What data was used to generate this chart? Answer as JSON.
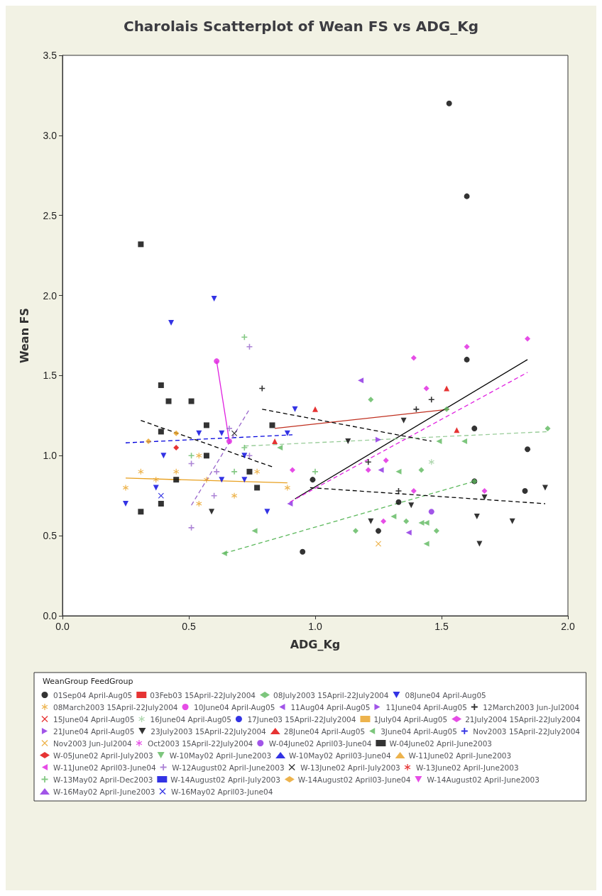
{
  "chart_data": {
    "type": "scatter",
    "title": "Charolais Scatterplot of Wean FS vs ADG_Kg",
    "xlabel": "ADG_Kg",
    "ylabel": "Wean FS",
    "legend_title": "WeanGroup FeedGroup",
    "legend": "bottom",
    "grid": false,
    "xlim": [
      0,
      2
    ],
    "xticks": [
      {
        "value": 0,
        "label": "0.0"
      },
      {
        "value": 0.5,
        "label": "0.5"
      },
      {
        "value": 1,
        "label": "1.0"
      },
      {
        "value": 1.5,
        "label": "1.5"
      },
      {
        "value": 2,
        "label": "2.0"
      }
    ],
    "ylim": [
      0,
      3.5
    ],
    "yticks": [
      {
        "value": 0,
        "label": "0.0"
      },
      {
        "value": 0.5,
        "label": "0.5"
      },
      {
        "value": 1,
        "label": "1.0"
      },
      {
        "value": 1.5,
        "label": "1.5"
      },
      {
        "value": 2,
        "label": "2.0"
      },
      {
        "value": 2.5,
        "label": "2.5"
      },
      {
        "value": 3,
        "label": "3.0"
      },
      {
        "value": 3.5,
        "label": "3.5"
      }
    ],
    "series": [
      {
        "name": "01Sep04 April-Aug05",
        "color": "#000000",
        "marker": "circle",
        "x": [
          0.95,
          0.99,
          1.25,
          1.33,
          1.6,
          1.6,
          1.53,
          1.63,
          1.63,
          1.83,
          1.84
        ],
        "values": [
          0.4,
          0.85,
          0.53,
          0.71,
          1.6,
          2.62,
          3.2,
          0.84,
          1.17,
          0.78,
          1.04
        ]
      },
      {
        "name": "03Feb03 15April-22July2004",
        "color": "#e00000",
        "marker": "square"
      },
      {
        "name": "08July2003 15April-22July2004",
        "color": "#5cb85c",
        "marker": "diamond",
        "x": [
          1.16,
          1.22,
          1.36,
          1.42,
          1.48,
          1.52,
          1.63,
          1.92
        ],
        "values": [
          0.53,
          1.35,
          0.59,
          0.91,
          0.53,
          1.29,
          0.84,
          1.17
        ]
      },
      {
        "name": "08June04 April-Aug05",
        "color": "#0000dd",
        "marker": "triangle-down",
        "x": [
          0.25,
          0.37,
          0.4,
          0.43,
          0.54,
          0.6,
          0.63,
          0.63,
          0.72,
          0.72,
          0.81,
          0.89,
          0.92
        ],
        "values": [
          0.7,
          0.8,
          1.0,
          1.83,
          1.14,
          1.98,
          0.85,
          1.14,
          0.85,
          1.0,
          0.65,
          1.14,
          1.29
        ]
      },
      {
        "name": "08March2003 15April-22July2004",
        "color": "#e8a020",
        "marker": "star",
        "x": [
          0.25,
          0.31,
          0.37,
          0.45,
          0.54,
          0.54,
          0.57,
          0.68,
          0.77,
          0.89
        ],
        "values": [
          0.8,
          0.9,
          0.85,
          0.9,
          0.7,
          1.0,
          0.85,
          0.75,
          0.9,
          0.8
        ]
      },
      {
        "name": "10June04 April-Aug05",
        "color": "#e020e0",
        "marker": "circle",
        "x": [
          0.61,
          0.66
        ],
        "values": [
          1.59,
          1.09
        ]
      },
      {
        "name": "11Aug04 April-Aug05",
        "color": "#8a2be2",
        "marker": "triangle-left",
        "x": [
          0.9,
          1.18,
          1.26,
          1.37
        ],
        "values": [
          0.7,
          1.47,
          0.91,
          0.52
        ]
      },
      {
        "name": "11June04 April-Aug05",
        "color": "#8a2be2",
        "marker": "triangle-right",
        "x": [
          1.25
        ],
        "values": [
          1.1
        ]
      },
      {
        "name": "12March2003 Jun-Jul2004",
        "color": "#000000",
        "marker": "plus",
        "x": [
          0.79,
          1.21,
          1.33,
          1.4,
          1.46
        ],
        "values": [
          1.42,
          0.96,
          0.78,
          1.29,
          1.35
        ]
      },
      {
        "name": "15June04 April-Aug05",
        "color": "#e00000",
        "marker": "cross"
      },
      {
        "name": "16June04 April-Aug05",
        "color": "#99cc99",
        "marker": "star",
        "x": [
          1.46
        ],
        "values": [
          0.96
        ]
      },
      {
        "name": "17June03 15April-22July2004",
        "color": "#0000dd",
        "marker": "circle"
      },
      {
        "name": "1July04 April-Aug05",
        "color": "#e8a020",
        "marker": "square"
      },
      {
        "name": "21July2004 15April-22July2004",
        "color": "#e020e0",
        "marker": "diamond",
        "x": [
          0.91,
          1.21,
          1.27,
          1.28,
          1.39,
          1.39,
          1.44,
          1.6,
          1.67,
          1.84
        ],
        "values": [
          0.91,
          0.91,
          0.59,
          0.97,
          0.78,
          1.61,
          1.42,
          1.68,
          0.78,
          1.73
        ]
      },
      {
        "name": "21June04 April-Aug05",
        "color": "#8a2be2",
        "marker": "triangle-right"
      },
      {
        "name": "23July2003 15April-22July2004",
        "color": "#000000",
        "marker": "triangle-down",
        "x": [
          0.59,
          1.13,
          1.22,
          1.35,
          1.38,
          1.64,
          1.65,
          1.67,
          1.78,
          1.91
        ],
        "values": [
          0.65,
          1.09,
          0.59,
          1.22,
          0.69,
          0.62,
          0.45,
          0.74,
          0.59,
          0.8
        ]
      },
      {
        "name": "28June04 April-Aug05",
        "color": "#e00000",
        "marker": "triangle-up",
        "x": [
          0.84,
          1.0,
          1.52,
          1.56
        ],
        "values": [
          1.09,
          1.29,
          1.42,
          1.16
        ]
      },
      {
        "name": "3June04 April-Aug05",
        "color": "#5cb85c",
        "marker": "triangle-left",
        "x": [
          0.64,
          0.76,
          0.86,
          1.31,
          1.33,
          1.42,
          1.44,
          1.44,
          1.49,
          1.59
        ],
        "values": [
          0.39,
          0.53,
          1.05,
          0.62,
          0.9,
          0.58,
          0.45,
          0.58,
          1.09,
          1.09
        ]
      },
      {
        "name": "Nov2003 15April-22July2004",
        "color": "#0000dd",
        "marker": "plus"
      },
      {
        "name": "Nov2003 Jun-Jul2004",
        "color": "#e8a020",
        "marker": "cross",
        "x": [
          1.25
        ],
        "values": [
          0.45
        ]
      },
      {
        "name": "Oct2003 15April-22July2004",
        "color": "#e020e0",
        "marker": "star"
      },
      {
        "name": "W-04June02 April03-June04",
        "color": "#8a2be2",
        "marker": "circle",
        "x": [
          1.46
        ],
        "values": [
          0.65
        ]
      },
      {
        "name": "W-04June02 April-June2003",
        "color": "#000000",
        "marker": "square",
        "x": [
          0.31,
          0.31,
          0.39,
          0.39,
          0.39,
          0.42,
          0.45,
          0.51,
          0.57,
          0.57,
          0.74,
          0.77,
          0.83
        ],
        "values": [
          0.65,
          2.32,
          0.7,
          1.15,
          1.44,
          1.34,
          0.85,
          1.34,
          1.0,
          1.19,
          0.9,
          0.8,
          1.19
        ]
      },
      {
        "name": "W-05June02 April-July2003",
        "color": "#e00000",
        "marker": "diamond",
        "x": [
          0.45
        ],
        "values": [
          1.05
        ]
      },
      {
        "name": "W-10May02 April-June2003",
        "color": "#5cb85c",
        "marker": "triangle-down"
      },
      {
        "name": "W-10May02 April03-June04",
        "color": "#0000dd",
        "marker": "triangle-up"
      },
      {
        "name": "W-11June02 April-June2003",
        "color": "#e8a020",
        "marker": "triangle-up"
      },
      {
        "name": "W-11June02 April03-June04",
        "color": "#e020e0",
        "marker": "triangle-left"
      },
      {
        "name": "W-12August02 April-June2003",
        "color": "#9966cc",
        "marker": "plus",
        "x": [
          0.51,
          0.51,
          0.6,
          0.61,
          0.66,
          0.74,
          0.74
        ],
        "values": [
          0.55,
          0.95,
          0.75,
          0.9,
          1.17,
          1.0,
          1.68
        ]
      },
      {
        "name": "W-13June02 April-July2003",
        "color": "#000000",
        "marker": "cross",
        "x": [
          0.68
        ],
        "values": [
          1.14
        ]
      },
      {
        "name": "W-13June02 April-June2003",
        "color": "#e00000",
        "marker": "star"
      },
      {
        "name": "W-13May02 April-Dec2003",
        "color": "#66bb66",
        "marker": "plus",
        "x": [
          0.51,
          0.68,
          0.72,
          0.72,
          1.0
        ],
        "values": [
          1.0,
          0.9,
          1.05,
          1.74,
          0.9
        ]
      },
      {
        "name": "W-14August02 April-July2003",
        "color": "#0000dd",
        "marker": "square"
      },
      {
        "name": "W-14August02 April03-June04",
        "color": "#e8a020",
        "marker": "diamond",
        "x": [
          0.34,
          0.45
        ],
        "values": [
          1.09,
          1.14
        ]
      },
      {
        "name": "W-14August02 April-June2003",
        "color": "#e020e0",
        "marker": "triangle-down"
      },
      {
        "name": "W-16May02 April-June2003",
        "color": "#8a2be2",
        "marker": "triangle-up"
      },
      {
        "name": "W-16May02 April03-June04",
        "color": "#0000dd",
        "marker": "cross",
        "x": [
          0.39
        ],
        "values": [
          0.75
        ]
      },
      {
        "type": "line",
        "color": "#0000dd",
        "line_style": "dashed",
        "marker": "none",
        "x": [
          0.25,
          0.91
        ],
        "values": [
          1.08,
          1.13
        ]
      },
      {
        "type": "line",
        "color": "#e8a020",
        "line_style": "solid",
        "marker": "none",
        "x": [
          0.25,
          0.89
        ],
        "values": [
          0.86,
          0.83
        ]
      },
      {
        "type": "line",
        "color": "#000000",
        "line_style": "dashed",
        "marker": "none",
        "x": [
          0.31,
          0.83
        ],
        "values": [
          1.22,
          0.93
        ]
      },
      {
        "type": "line",
        "color": "#9966cc",
        "line_style": "dashed",
        "marker": "none",
        "x": [
          0.51,
          0.74
        ],
        "values": [
          0.69,
          1.29
        ]
      },
      {
        "type": "line",
        "color": "#e020e0",
        "line_style": "solid",
        "marker": "none",
        "x": [
          0.61,
          0.66
        ],
        "values": [
          1.59,
          1.09
        ]
      },
      {
        "type": "line",
        "color": "#c03020",
        "line_style": "solid",
        "marker": "none",
        "x": [
          0.84,
          1.53
        ],
        "values": [
          1.17,
          1.29
        ]
      },
      {
        "type": "line",
        "color": "#5cb85c",
        "line_style": "dashed",
        "marker": "none",
        "x": [
          0.64,
          1.63
        ],
        "values": [
          0.39,
          0.84
        ]
      },
      {
        "type": "line",
        "color": "#000000",
        "line_style": "dashed",
        "marker": "none",
        "x": [
          0.98,
          1.91
        ],
        "values": [
          0.8,
          0.7
        ]
      },
      {
        "type": "line",
        "color": "#000000",
        "line_style": "solid",
        "marker": "none",
        "x": [
          0.92,
          1.84
        ],
        "values": [
          0.73,
          1.6
        ]
      },
      {
        "type": "line",
        "color": "#e020e0",
        "line_style": "dashed",
        "marker": "none",
        "x": [
          0.9,
          1.84
        ],
        "values": [
          0.71,
          1.52
        ]
      },
      {
        "type": "line",
        "color": "#000000",
        "line_style": "dashed",
        "marker": "none",
        "x": [
          0.79,
          1.46
        ],
        "values": [
          1.29,
          1.09
        ]
      },
      {
        "type": "line",
        "color": "#99cc99",
        "line_style": "dashed",
        "marker": "none",
        "x": [
          0.72,
          1.92
        ],
        "values": [
          1.06,
          1.15
        ]
      }
    ]
  }
}
